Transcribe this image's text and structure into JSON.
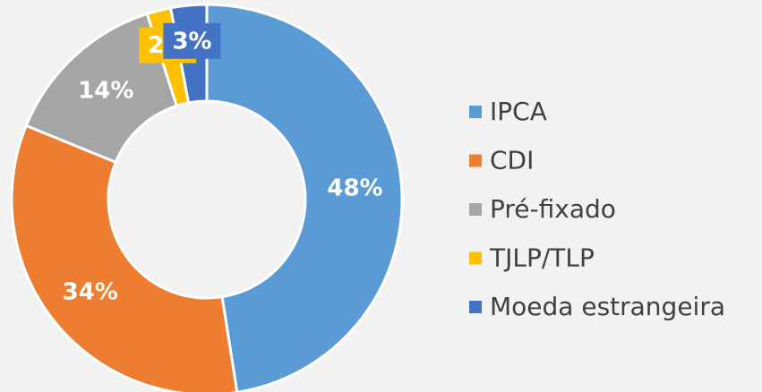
{
  "chart_data": {
    "type": "donut",
    "categories": [
      "IPCA",
      "CDI",
      "Pré-fixado",
      "TJLP/TLP",
      "Moeda estrangeira"
    ],
    "values": [
      48,
      34,
      14,
      2,
      3
    ],
    "value_labels": [
      "48%",
      "34%",
      "14%",
      "2%",
      "3%"
    ],
    "colors": [
      "#5B9BD5",
      "#ED7D31",
      "#A5A5A5",
      "#FFC000",
      "#4472C4"
    ],
    "legend": "right"
  }
}
